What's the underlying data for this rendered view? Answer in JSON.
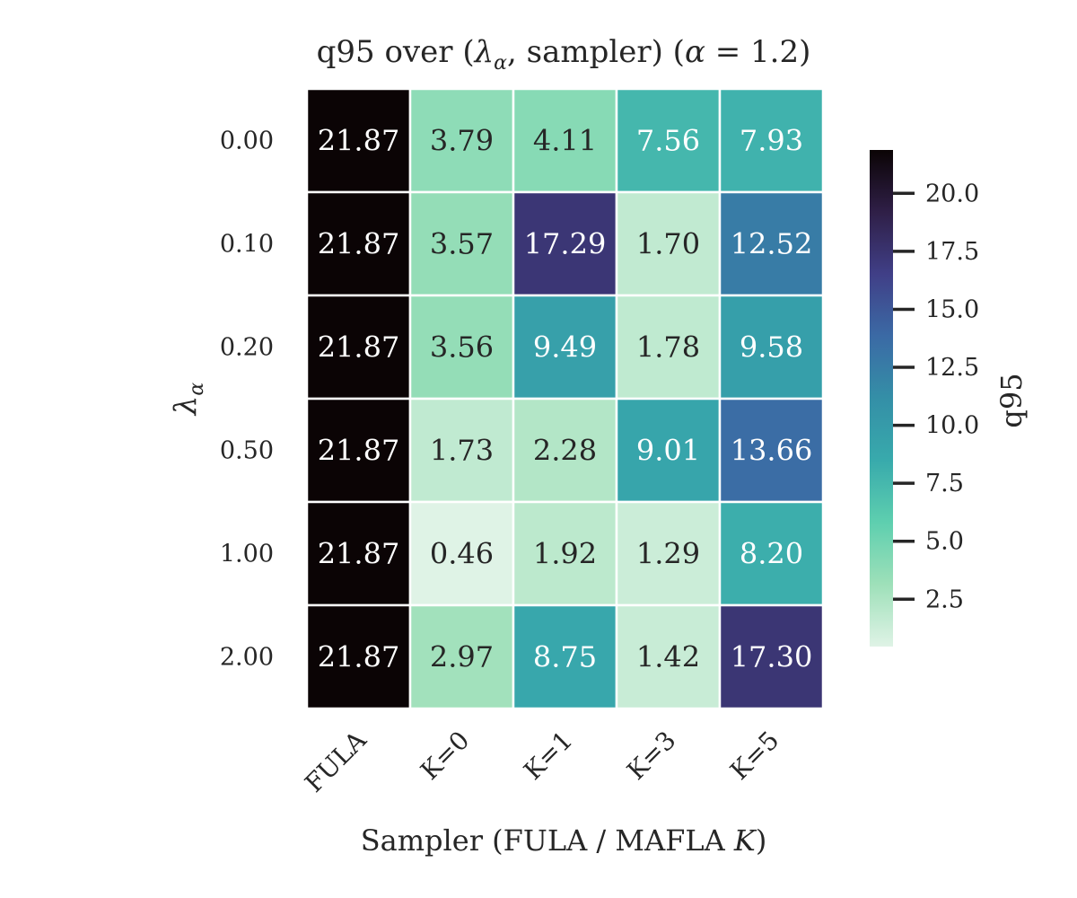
{
  "chart_data": {
    "type": "heatmap",
    "title_prefix": "q95 over (",
    "title_lambda": "λ",
    "title_lambda_sub": "α",
    "title_middle": ", sampler) (",
    "title_alpha": "α",
    "title_suffix": " = 1.2)",
    "xlabel": "Sampler (FULA / MAFLA ",
    "xlabel_var": "K",
    "xlabel_close": ")",
    "ylabel_symbol": "λ",
    "ylabel_sub": "α",
    "x_categories": [
      "FULA",
      "K=0",
      "K=1",
      "K=3",
      "K=5"
    ],
    "y_categories": [
      "0.00",
      "0.10",
      "0.20",
      "0.50",
      "1.00",
      "2.00"
    ],
    "cell_labels": [
      [
        "21.87",
        "3.79",
        "4.11",
        "7.56",
        "7.93"
      ],
      [
        "21.87",
        "3.57",
        "17.29",
        "1.70",
        "12.52"
      ],
      [
        "21.87",
        "3.56",
        "9.49",
        "1.78",
        "9.58"
      ],
      [
        "21.87",
        "1.73",
        "2.28",
        "9.01",
        "13.66"
      ],
      [
        "21.87",
        "0.46",
        "1.92",
        "1.29",
        "8.20"
      ],
      [
        "21.87",
        "2.97",
        "8.75",
        "1.42",
        "17.30"
      ]
    ],
    "colorbar": {
      "label": "q95",
      "vmin": 0.46,
      "vmax": 21.87,
      "ticks": [
        2.5,
        5.0,
        7.5,
        10.0,
        12.5,
        15.0,
        17.5,
        20.0
      ],
      "tick_labels": [
        "2.5",
        "5.0",
        "7.5",
        "10.0",
        "12.5",
        "15.0",
        "17.5",
        "20.0"
      ],
      "colormap": "mako_r",
      "colormap_stops": [
        "#dff3e6",
        "#9ee0b9",
        "#5ecfaf",
        "#38aaac",
        "#348fa7",
        "#3b6aa5",
        "#403f87",
        "#2f1f47",
        "#0b0405"
      ]
    }
  }
}
